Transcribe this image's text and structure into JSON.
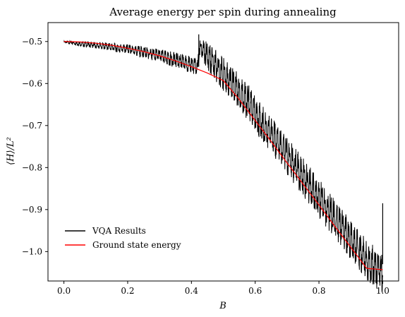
{
  "chart_data": {
    "type": "line",
    "title": "Average energy per spin during annealing",
    "xlabel": "B",
    "ylabel": "⟨H⟩/L²",
    "xlim": [
      -0.05,
      1.05
    ],
    "ylim": [
      -1.07,
      -0.455
    ],
    "xticks": [
      0.0,
      0.2,
      0.4,
      0.6,
      0.8,
      1.0
    ],
    "xtick_labels": [
      "0.0",
      "0.2",
      "0.4",
      "0.6",
      "0.8",
      "1.0"
    ],
    "yticks": [
      -0.5,
      -0.6,
      -0.7,
      -0.8,
      -0.9,
      -1.0
    ],
    "ytick_labels": [
      "−0.5",
      "−0.6",
      "−0.7",
      "−0.8",
      "−0.9",
      "−1.0"
    ],
    "grid": false,
    "legend_position": "lower-left",
    "series": [
      {
        "name": "VQA Results",
        "color": "#000000",
        "x": [
          0.0,
          0.05,
          0.1,
          0.15,
          0.2,
          0.25,
          0.3,
          0.35,
          0.4,
          0.42,
          0.425,
          0.44,
          0.46,
          0.5,
          0.55,
          0.6,
          0.65,
          0.7,
          0.75,
          0.8,
          0.85,
          0.9,
          0.95,
          1.0
        ],
        "y": [
          -0.5,
          -0.502,
          -0.505,
          -0.508,
          -0.513,
          -0.518,
          -0.526,
          -0.535,
          -0.545,
          -0.553,
          -0.505,
          -0.51,
          -0.525,
          -0.558,
          -0.598,
          -0.65,
          -0.7,
          -0.75,
          -0.8,
          -0.85,
          -0.9,
          -0.95,
          -0.995,
          -1.03
        ],
        "noise_amplitude": [
          0.001,
          0.003,
          0.004,
          0.005,
          0.006,
          0.007,
          0.008,
          0.009,
          0.01,
          0.01,
          0.01,
          0.015,
          0.018,
          0.02,
          0.02,
          0.022,
          0.022,
          0.022,
          0.023,
          0.023,
          0.023,
          0.023,
          0.024,
          0.024
        ]
      },
      {
        "name": "Ground state energy",
        "color": "#ff0000",
        "x": [
          0.0,
          0.05,
          0.1,
          0.15,
          0.2,
          0.25,
          0.3,
          0.35,
          0.4,
          0.45,
          0.5,
          0.55,
          0.6,
          0.65,
          0.7,
          0.75,
          0.8,
          0.85,
          0.9,
          0.95,
          1.0
        ],
        "y": [
          -0.5,
          -0.501,
          -0.504,
          -0.509,
          -0.516,
          -0.524,
          -0.534,
          -0.546,
          -0.56,
          -0.575,
          -0.593,
          -0.638,
          -0.688,
          -0.738,
          -0.789,
          -0.839,
          -0.889,
          -0.94,
          -0.99,
          -1.04,
          -1.043
        ]
      }
    ],
    "spikes": [
      {
        "x": 0.423,
        "y_top": -0.483,
        "y_bottom": -0.56
      },
      {
        "x": 0.58,
        "y_top": -0.605,
        "y_bottom": -0.64
      },
      {
        "x": 1.0,
        "y_top": -0.885,
        "y_bottom": -1.03
      }
    ]
  }
}
